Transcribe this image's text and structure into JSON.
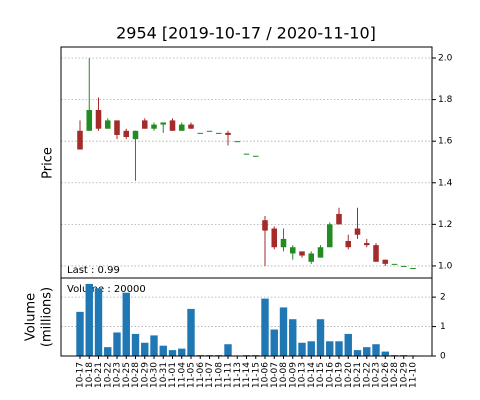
{
  "chart_data": {
    "type": "candlestick",
    "title": "2954   [2019-10-17 / 2020-11-10]",
    "ylabel": "Price",
    "volume_ylabel": [
      "Volume",
      "(millions)"
    ],
    "last_label": "Last : 0.99",
    "volume_label": "Volume : 20000",
    "categories": [
      "10-17",
      "10-18",
      "10-21",
      "10-22",
      "10-23",
      "10-25",
      "10-28",
      "10-29",
      "10-30",
      "10-31",
      "11-01",
      "11-04",
      "11-05",
      "11-06",
      "11-07",
      "11-08",
      "11-11",
      "11-13",
      "11-14",
      "11-15",
      "10-06",
      "10-07",
      "10-08",
      "10-09",
      "10-13",
      "10-14",
      "10-15",
      "10-16",
      "10-19",
      "10-20",
      "10-21",
      "10-22",
      "10-23",
      "10-26",
      "10-28",
      "10-29",
      "11-10"
    ],
    "open": [
      1.65,
      1.65,
      1.75,
      1.66,
      1.7,
      1.65,
      1.61,
      1.7,
      1.66,
      1.68,
      1.7,
      1.65,
      1.68,
      1.64,
      1.65,
      1.64,
      1.64,
      1.6,
      1.54,
      1.53,
      1.22,
      1.18,
      1.09,
      1.06,
      1.07,
      1.02,
      1.04,
      1.09,
      1.25,
      1.12,
      1.18,
      1.11,
      1.1,
      1.03,
      1.01,
      1.0,
      0.99
    ],
    "high": [
      1.7,
      2.0,
      1.81,
      1.71,
      1.7,
      1.66,
      1.65,
      1.71,
      1.69,
      1.69,
      1.71,
      1.69,
      1.69,
      1.64,
      1.65,
      1.64,
      1.65,
      1.6,
      1.54,
      1.53,
      1.24,
      1.19,
      1.18,
      1.1,
      1.07,
      1.07,
      1.1,
      1.21,
      1.28,
      1.15,
      1.28,
      1.13,
      1.11,
      1.03,
      1.01,
      1.0,
      0.99
    ],
    "low": [
      1.56,
      1.65,
      1.65,
      1.66,
      1.61,
      1.61,
      1.41,
      1.66,
      1.65,
      1.64,
      1.65,
      1.65,
      1.66,
      1.64,
      1.65,
      1.64,
      1.58,
      1.6,
      1.54,
      1.53,
      1.0,
      1.08,
      1.07,
      1.03,
      1.04,
      1.01,
      1.04,
      1.09,
      1.2,
      1.08,
      1.13,
      1.09,
      1.02,
      1.0,
      1.01,
      1.0,
      0.99
    ],
    "close": [
      1.56,
      1.75,
      1.66,
      1.7,
      1.63,
      1.62,
      1.65,
      1.66,
      1.68,
      1.69,
      1.65,
      1.68,
      1.66,
      1.64,
      1.65,
      1.64,
      1.63,
      1.6,
      1.54,
      1.53,
      1.17,
      1.09,
      1.13,
      1.09,
      1.05,
      1.06,
      1.09,
      1.2,
      1.2,
      1.09,
      1.15,
      1.1,
      1.02,
      1.01,
      1.01,
      1.0,
      0.99
    ],
    "volume": [
      1.5,
      2.45,
      2.3,
      0.3,
      0.8,
      2.15,
      0.75,
      0.45,
      0.7,
      0.35,
      0.2,
      0.25,
      1.6,
      0.03,
      0.03,
      0.03,
      0.4,
      0.02,
      0.03,
      0.03,
      1.95,
      0.9,
      1.65,
      1.25,
      0.45,
      0.5,
      1.25,
      0.5,
      0.5,
      0.75,
      0.2,
      0.3,
      0.4,
      0.15,
      0.03,
      0.03,
      0.02
    ],
    "up_color": "#228b22",
    "down_color": "#a52a2a",
    "volume_color": "#1f77b4",
    "ylim": [
      0.942,
      2.053
    ],
    "yticks": [
      {
        "value": 1.0,
        "label": "1.0"
      },
      {
        "value": 1.2,
        "label": "1.2"
      },
      {
        "value": 1.4,
        "label": "1.4"
      },
      {
        "value": 1.6,
        "label": "1.6"
      },
      {
        "value": 1.8,
        "label": "1.8"
      },
      {
        "value": 2.0,
        "label": "2.0"
      }
    ],
    "volume_ylim": [
      0,
      2.65
    ],
    "volume_yticks": [
      0,
      1,
      2
    ],
    "grid": true
  }
}
